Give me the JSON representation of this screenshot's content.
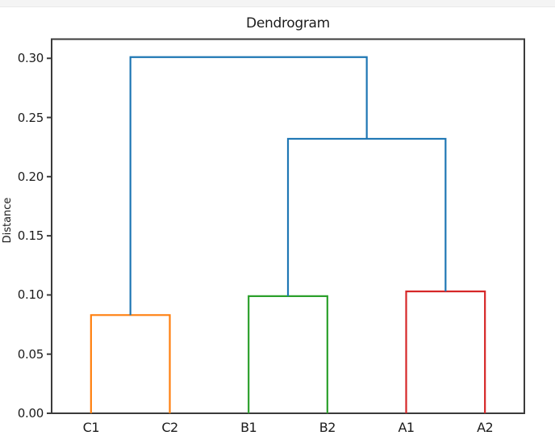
{
  "page": {
    "background_color": "#ffffff",
    "top_strip_color": "#f4f4f4"
  },
  "chart_data": {
    "type": "dendrogram",
    "title": "Dendrogram",
    "xlabel": "",
    "ylabel": "Distance",
    "leaves": [
      "C1",
      "C2",
      "B1",
      "B2",
      "A1",
      "A2"
    ],
    "yticks": [
      0.0,
      0.05,
      0.1,
      0.15,
      0.2,
      0.25,
      0.3
    ],
    "ytick_labels": [
      "0.00",
      "0.05",
      "0.10",
      "0.15",
      "0.20",
      "0.25",
      "0.30"
    ],
    "ylim": [
      0,
      0.3162
    ],
    "grid": false,
    "legend": null,
    "merges": [
      {
        "name": "C1-C2",
        "left": "C1",
        "right": "C2",
        "height": 0.083,
        "color": "#ff7f0e"
      },
      {
        "name": "B1-B2",
        "left": "B1",
        "right": "B2",
        "height": 0.099,
        "color": "#2ca02c"
      },
      {
        "name": "A1-A2",
        "left": "A1",
        "right": "A2",
        "height": 0.103,
        "color": "#d62728"
      },
      {
        "name": "BA",
        "left": "B1-B2",
        "right": "A1-A2",
        "height": 0.232,
        "color": "#1f77b4"
      },
      {
        "name": "root",
        "left": "C1-C2",
        "right": "BA",
        "height": 0.301,
        "color": "#1f77b4"
      }
    ],
    "colors": {
      "link_above_threshold": "#1f77b4",
      "cluster_C": "#ff7f0e",
      "cluster_B": "#2ca02c",
      "cluster_A": "#d62728"
    },
    "axes": {
      "spine_color": "#3b3b3b",
      "tick_color": "#3b3b3b",
      "text_color": "#1c1c1c"
    }
  }
}
